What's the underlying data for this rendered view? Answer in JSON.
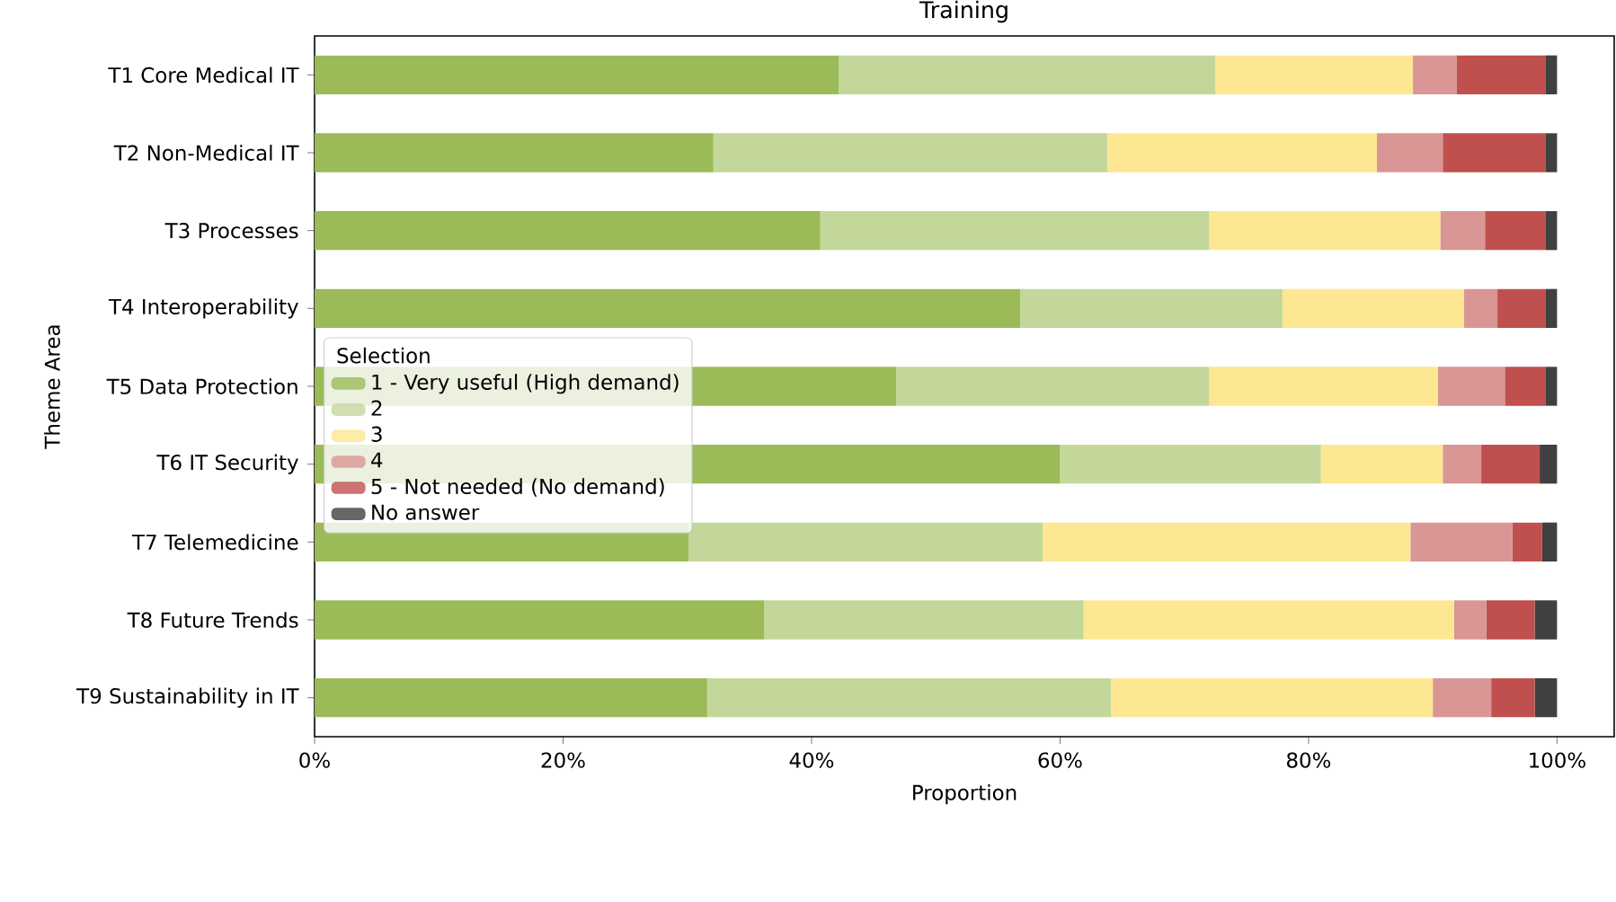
{
  "chart_data": {
    "type": "bar",
    "orientation": "horizontal",
    "stacked": true,
    "title": "Training",
    "xlabel": "Proportion",
    "ylabel": "Theme Area",
    "legend_title": "Selection",
    "legend": "left",
    "categories": [
      "T1 Core Medical IT",
      "T2 Non-Medical IT",
      "T3 Processes",
      "T4 Interoperability",
      "T5 Data Protection",
      "T6 IT Security",
      "T7 Telemedicine",
      "T8 Future Trends",
      "T9 Sustainability in IT"
    ],
    "xlim": [
      0,
      104.6
    ],
    "xticks": [
      {
        "value": 0,
        "label": "0%"
      },
      {
        "value": 20,
        "label": "20%"
      },
      {
        "value": 40,
        "label": "40%"
      },
      {
        "value": 60,
        "label": "60%"
      },
      {
        "value": 80,
        "label": "80%"
      },
      {
        "value": 100,
        "label": "100%"
      }
    ],
    "series": [
      {
        "name": "1 - Very useful (High demand)",
        "color": "#9bbb59",
        "values": [
          42.2,
          32.1,
          40.7,
          56.8,
          46.8,
          60.0,
          30.1,
          36.2,
          31.6
        ]
      },
      {
        "name": "2",
        "color": "#c4d79b",
        "values": [
          30.3,
          31.7,
          31.3,
          21.1,
          25.2,
          21.0,
          28.5,
          25.7,
          32.5
        ]
      },
      {
        "name": "3",
        "color": "#fde792",
        "values": [
          15.9,
          21.7,
          18.6,
          14.6,
          18.4,
          9.8,
          29.6,
          29.8,
          25.9
        ]
      },
      {
        "name": "4",
        "color": "#d99694",
        "values": [
          3.5,
          5.3,
          3.6,
          2.7,
          5.4,
          3.1,
          8.2,
          2.6,
          4.7
        ]
      },
      {
        "name": "5 - Not needed (No demand)",
        "color": "#c0504d",
        "values": [
          7.2,
          8.3,
          4.9,
          3.9,
          3.3,
          4.7,
          2.4,
          3.9,
          3.5
        ]
      },
      {
        "name": "No answer",
        "color": "#404040",
        "values": [
          0.9,
          0.9,
          0.9,
          0.9,
          0.9,
          1.4,
          1.2,
          1.8,
          1.8
        ]
      }
    ]
  }
}
